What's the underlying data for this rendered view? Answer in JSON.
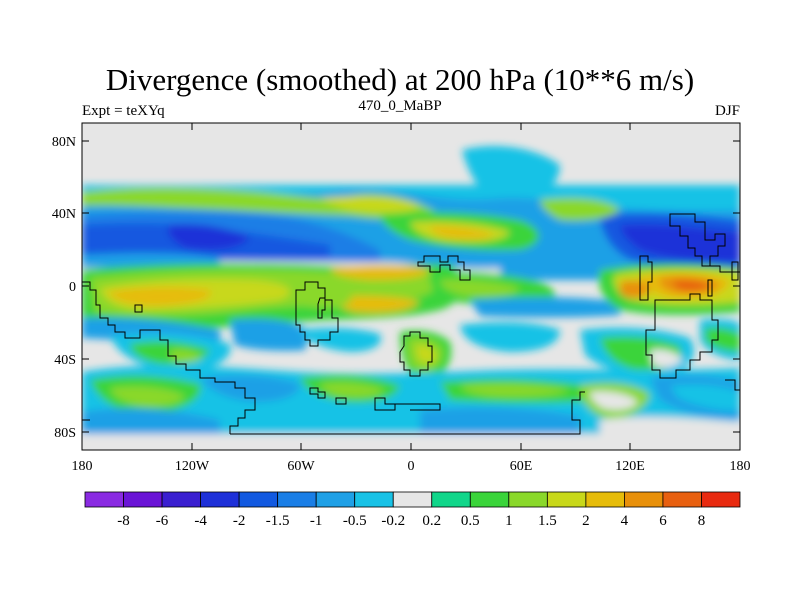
{
  "title": "Divergence (smoothed) at 200 hPa (10**6 m/s)",
  "subtitle": "470_0_MaBP",
  "left_label": "Expt = teXYq",
  "right_label": "DJF",
  "axes": {
    "x_ticks": [
      "180",
      "120W",
      "60W",
      "0",
      "60E",
      "120E",
      "180"
    ],
    "y_ticks": [
      "80N",
      "40N",
      "0",
      "40S",
      "80S"
    ]
  },
  "colorbar": {
    "labels": [
      "-8",
      "-6",
      "-4",
      "-2",
      "-1.5",
      "-1",
      "-0.5",
      "-0.2",
      "0.2",
      "0.5",
      "1",
      "1.5",
      "2",
      "4",
      "6",
      "8"
    ],
    "colors": [
      "#8a2be2",
      "#6a14d6",
      "#3a1fd0",
      "#1e30d8",
      "#1259e0",
      "#1a7ee6",
      "#1fa0e6",
      "#19c2e6",
      "#e6e6e6",
      "#11d68a",
      "#3ad43a",
      "#8ad82a",
      "#c8d81a",
      "#e6bc0a",
      "#e8900a",
      "#e86010",
      "#e82a10"
    ]
  }
}
